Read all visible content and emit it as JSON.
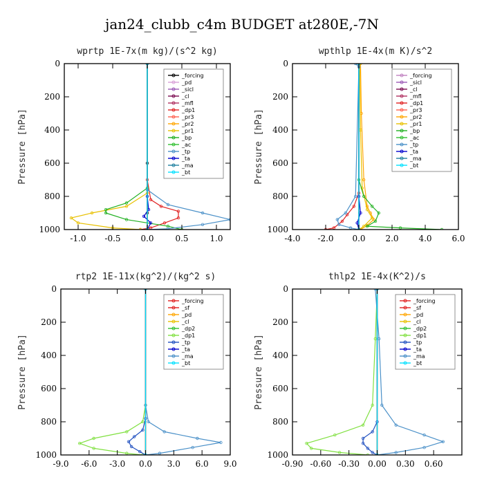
{
  "suptitle": "jan24_clubb_c4m  BUDGET at280E,-7N",
  "chart_data": [
    {
      "type": "line",
      "title": "wprtp  1E-7x(m kg)/(s^2 kg)",
      "ylabel": "Pressure [hPa]",
      "xlim": [
        -1.2,
        1.2
      ],
      "ylim": [
        1000,
        0
      ],
      "xticks": [
        -1.0,
        -0.5,
        0.0,
        0.5,
        1.0
      ],
      "xticklabels": [
        "-1.0",
        "-0.5",
        "0.0",
        "0.5",
        "1.0"
      ],
      "yticks": [
        0,
        200,
        400,
        600,
        800,
        1000
      ],
      "grid": false,
      "legend_position": "top-right",
      "series": [
        {
          "name": "_forcing",
          "color": "#000000",
          "x": [
            0,
            0,
            0,
            0
          ],
          "y": [
            0,
            600,
            900,
            1000
          ]
        },
        {
          "name": "_pd",
          "color": "#d8a0d8",
          "x": [
            0,
            0
          ],
          "y": [
            0,
            1000
          ]
        },
        {
          "name": "_sicl",
          "color": "#9b59b6",
          "x": [
            0,
            0
          ],
          "y": [
            0,
            1000
          ]
        },
        {
          "name": "_cl",
          "color": "#7a0a50",
          "x": [
            0,
            0
          ],
          "y": [
            0,
            1000
          ]
        },
        {
          "name": "_mfl",
          "color": "#b03060",
          "x": [
            0,
            0
          ],
          "y": [
            0,
            1000
          ]
        },
        {
          "name": "_dp1",
          "color": "#e02020",
          "x": [
            0,
            0,
            0.05,
            0.2,
            0.45,
            0.45,
            0.25,
            0.05,
            -0.1
          ],
          "y": [
            0,
            700,
            820,
            860,
            890,
            930,
            960,
            990,
            1000
          ]
        },
        {
          "name": "_pr3",
          "color": "#ff6050",
          "x": [
            0,
            0
          ],
          "y": [
            0,
            1000
          ]
        },
        {
          "name": "_pr2",
          "color": "#ffa500",
          "x": [
            0,
            0
          ],
          "y": [
            0,
            1000
          ]
        },
        {
          "name": "_pr1",
          "color": "#e8c000",
          "x": [
            0,
            0,
            -0.3,
            -0.8,
            -1.1,
            -1.0,
            -0.5,
            -0.1
          ],
          "y": [
            0,
            780,
            860,
            900,
            930,
            960,
            990,
            1000
          ]
        },
        {
          "name": "_bp",
          "color": "#20b020",
          "x": [
            0,
            0,
            -0.3,
            -0.6,
            -0.6,
            -0.3,
            0.3,
            0.5
          ],
          "y": [
            0,
            750,
            840,
            880,
            900,
            940,
            980,
            1000
          ]
        },
        {
          "name": "_ac",
          "color": "#30c030",
          "x": [
            0,
            0
          ],
          "y": [
            0,
            1000
          ]
        },
        {
          "name": "_tp",
          "color": "#4a90c8",
          "x": [
            0,
            0,
            0.3,
            0.8,
            1.2,
            0.8,
            0.3,
            0
          ],
          "y": [
            0,
            760,
            850,
            900,
            940,
            970,
            995,
            1000
          ]
        },
        {
          "name": "_ta",
          "color": "#0000cc",
          "x": [
            0,
            0,
            0.02,
            -0.05,
            0.05,
            0
          ],
          "y": [
            0,
            800,
            880,
            920,
            960,
            1000
          ]
        },
        {
          "name": "_ma",
          "color": "#2080a0",
          "x": [
            0,
            0
          ],
          "y": [
            0,
            1000
          ]
        },
        {
          "name": "_bt",
          "color": "#00e0ff",
          "x": [
            0,
            0
          ],
          "y": [
            0,
            1000
          ]
        }
      ]
    },
    {
      "type": "line",
      "title": "wpthlp  1E-4x(m K)/s^2",
      "ylabel": "Pressure [hPa]",
      "xlim": [
        -4.0,
        6.0
      ],
      "ylim": [
        1000,
        0
      ],
      "xticks": [
        -4,
        -2,
        0,
        2,
        4,
        6
      ],
      "xticklabels": [
        "-4.0",
        "-2.0",
        "0.0",
        "2.0",
        "4.0",
        "6.0"
      ],
      "yticks": [
        0,
        200,
        400,
        600,
        800,
        1000
      ],
      "grid": false,
      "legend_position": "top-right",
      "series": [
        {
          "name": "_forcing",
          "color": "#c080c0",
          "x": [
            0,
            0
          ],
          "y": [
            0,
            1000
          ]
        },
        {
          "name": "_sicl",
          "color": "#9b59b6",
          "x": [
            0,
            0
          ],
          "y": [
            0,
            1000
          ]
        },
        {
          "name": "_cl",
          "color": "#7a0a50",
          "x": [
            0,
            0
          ],
          "y": [
            0,
            1000
          ]
        },
        {
          "name": "_mfl",
          "color": "#b03060",
          "x": [
            0,
            0
          ],
          "y": [
            0,
            1000
          ]
        },
        {
          "name": "_dp1",
          "color": "#e02020",
          "x": [
            0,
            0,
            -0.3,
            -0.7,
            -1.0,
            -1.5,
            -2.0
          ],
          "y": [
            0,
            780,
            860,
            910,
            950,
            990,
            1000
          ]
        },
        {
          "name": "_pr3",
          "color": "#ff6050",
          "x": [
            0,
            0
          ],
          "y": [
            0,
            1000
          ]
        },
        {
          "name": "_pr2",
          "color": "#ffa500",
          "x": [
            0.1,
            0.15,
            0.3,
            0.5,
            0.7,
            0.9,
            0.5,
            0.1
          ],
          "y": [
            0,
            300,
            700,
            860,
            900,
            940,
            975,
            1000
          ]
        },
        {
          "name": "_pr1",
          "color": "#e8c000",
          "x": [
            0.05,
            0.1,
            0.2,
            0.5,
            0.8,
            0.3,
            0
          ],
          "y": [
            0,
            400,
            750,
            880,
            930,
            980,
            1000
          ]
        },
        {
          "name": "_bp",
          "color": "#20b020",
          "x": [
            0,
            0,
            0.3,
            0.8,
            1.2,
            1.0,
            0.5,
            2.5,
            5.0
          ],
          "y": [
            0,
            700,
            800,
            860,
            900,
            950,
            980,
            990,
            1000
          ]
        },
        {
          "name": "_ac",
          "color": "#30c030",
          "x": [
            0,
            0
          ],
          "y": [
            0,
            1000
          ]
        },
        {
          "name": "_tp",
          "color": "#4a90c8",
          "x": [
            -0.2,
            0,
            -0.2,
            -0.8,
            -1.3,
            -1.2,
            -0.5,
            0
          ],
          "y": [
            0,
            20,
            800,
            900,
            940,
            970,
            990,
            1000
          ]
        },
        {
          "name": "_ta",
          "color": "#0000cc",
          "x": [
            0,
            0,
            0.1,
            -0.1,
            0
          ],
          "y": [
            0,
            800,
            900,
            960,
            1000
          ]
        },
        {
          "name": "_ma",
          "color": "#2080a0",
          "x": [
            0,
            0
          ],
          "y": [
            0,
            1000
          ]
        },
        {
          "name": "_bt",
          "color": "#00e0ff",
          "x": [
            0,
            0
          ],
          "y": [
            0,
            1000
          ]
        }
      ]
    },
    {
      "type": "line",
      "title": "rtp2  1E-11x(kg^2)/(kg^2 s)",
      "ylabel": "Pressure [hPa]",
      "xlim": [
        -9.0,
        9.0
      ],
      "ylim": [
        1000,
        0
      ],
      "xticks": [
        -9,
        -6,
        -3,
        0,
        3,
        6,
        9
      ],
      "xticklabels": [
        "-9.0",
        "-6.0",
        "-3.0",
        "0.0",
        "3.0",
        "6.0",
        "9.0"
      ],
      "yticks": [
        0,
        200,
        400,
        600,
        800,
        1000
      ],
      "grid": false,
      "legend_position": "top-right",
      "series": [
        {
          "name": "_forcing",
          "color": "#e02020",
          "x": [
            0,
            0
          ],
          "y": [
            0,
            1000
          ]
        },
        {
          "name": "_sf",
          "color": "#e02020",
          "x": [
            0,
            0
          ],
          "y": [
            0,
            1000
          ]
        },
        {
          "name": "_pd",
          "color": "#ffa500",
          "x": [
            0,
            0
          ],
          "y": [
            0,
            1000
          ]
        },
        {
          "name": "_cl",
          "color": "#e8c000",
          "x": [
            0,
            0
          ],
          "y": [
            0,
            1000
          ]
        },
        {
          "name": "_dp2",
          "color": "#30c030",
          "x": [
            0,
            0
          ],
          "y": [
            0,
            1000
          ]
        },
        {
          "name": "_dp1",
          "color": "#80e040",
          "x": [
            0,
            0,
            -0.3,
            -2.0,
            -5.5,
            -7.0,
            -5.5,
            -2.0,
            -0.3
          ],
          "y": [
            0,
            700,
            800,
            860,
            900,
            930,
            960,
            990,
            1000
          ]
        },
        {
          "name": "_tp",
          "color": "#2050c0",
          "x": [
            0,
            0,
            -0.3,
            -1.2,
            -1.8,
            -1.5,
            -0.6,
            0
          ],
          "y": [
            0,
            780,
            850,
            890,
            920,
            950,
            980,
            1000
          ]
        },
        {
          "name": "_ta",
          "color": "#0000cc",
          "x": [
            0,
            0
          ],
          "y": [
            0,
            1000
          ]
        },
        {
          "name": "_ma",
          "color": "#4a90c8",
          "x": [
            0,
            0,
            0.3,
            2.0,
            5.5,
            8.0,
            5.0,
            1.5,
            0
          ],
          "y": [
            0,
            700,
            800,
            860,
            900,
            925,
            955,
            990,
            1000
          ]
        },
        {
          "name": "_bt",
          "color": "#00e0ff",
          "x": [
            0,
            0
          ],
          "y": [
            0,
            1000
          ]
        }
      ]
    },
    {
      "type": "line",
      "title": "thlp2  1E-4x(K^2)/s",
      "ylabel": "Pressure [hPa]",
      "xlim": [
        -0.9,
        0.9
      ],
      "ylim": [
        1000,
        0
      ],
      "xticks": [
        -0.9,
        -0.6,
        -0.3,
        0,
        0.3,
        0.6
      ],
      "xticklabels": [
        "-0.90",
        "-0.60",
        "-0.30",
        "0.00",
        "0.30",
        "0.60"
      ],
      "yticks": [
        0,
        200,
        400,
        600,
        800,
        1000
      ],
      "grid": false,
      "legend_position": "top-right",
      "series": [
        {
          "name": "_forcing",
          "color": "#e02020",
          "x": [
            0,
            0
          ],
          "y": [
            0,
            1000
          ]
        },
        {
          "name": "_sf",
          "color": "#e02020",
          "x": [
            0,
            0
          ],
          "y": [
            0,
            1000
          ]
        },
        {
          "name": "_pd",
          "color": "#ffa500",
          "x": [
            0,
            0
          ],
          "y": [
            0,
            1000
          ]
        },
        {
          "name": "_cl",
          "color": "#e8c000",
          "x": [
            0,
            0
          ],
          "y": [
            0,
            1000
          ]
        },
        {
          "name": "_dp2",
          "color": "#30c030",
          "x": [
            0,
            0
          ],
          "y": [
            0,
            1000
          ]
        },
        {
          "name": "_dp1",
          "color": "#80e040",
          "x": [
            0,
            -0.02,
            -0.05,
            -0.15,
            -0.45,
            -0.75,
            -0.7,
            -0.4,
            -0.1
          ],
          "y": [
            0,
            300,
            700,
            820,
            880,
            930,
            960,
            985,
            1000
          ]
        },
        {
          "name": "_tp",
          "color": "#2050c0",
          "x": [
            0,
            0,
            -0.05,
            -0.15,
            -0.15,
            -0.1,
            -0.05,
            0
          ],
          "y": [
            0,
            800,
            860,
            900,
            930,
            960,
            985,
            1000
          ]
        },
        {
          "name": "_ta",
          "color": "#0000cc",
          "x": [
            0,
            0
          ],
          "y": [
            0,
            1000
          ]
        },
        {
          "name": "_ma",
          "color": "#4a90c8",
          "x": [
            -0.02,
            0.02,
            0.05,
            0.2,
            0.5,
            0.7,
            0.5,
            0.2,
            0
          ],
          "y": [
            0,
            300,
            700,
            820,
            880,
            920,
            955,
            985,
            1000
          ]
        },
        {
          "name": "_bt",
          "color": "#00e0ff",
          "x": [
            0,
            0
          ],
          "y": [
            0,
            1000
          ]
        }
      ]
    }
  ]
}
